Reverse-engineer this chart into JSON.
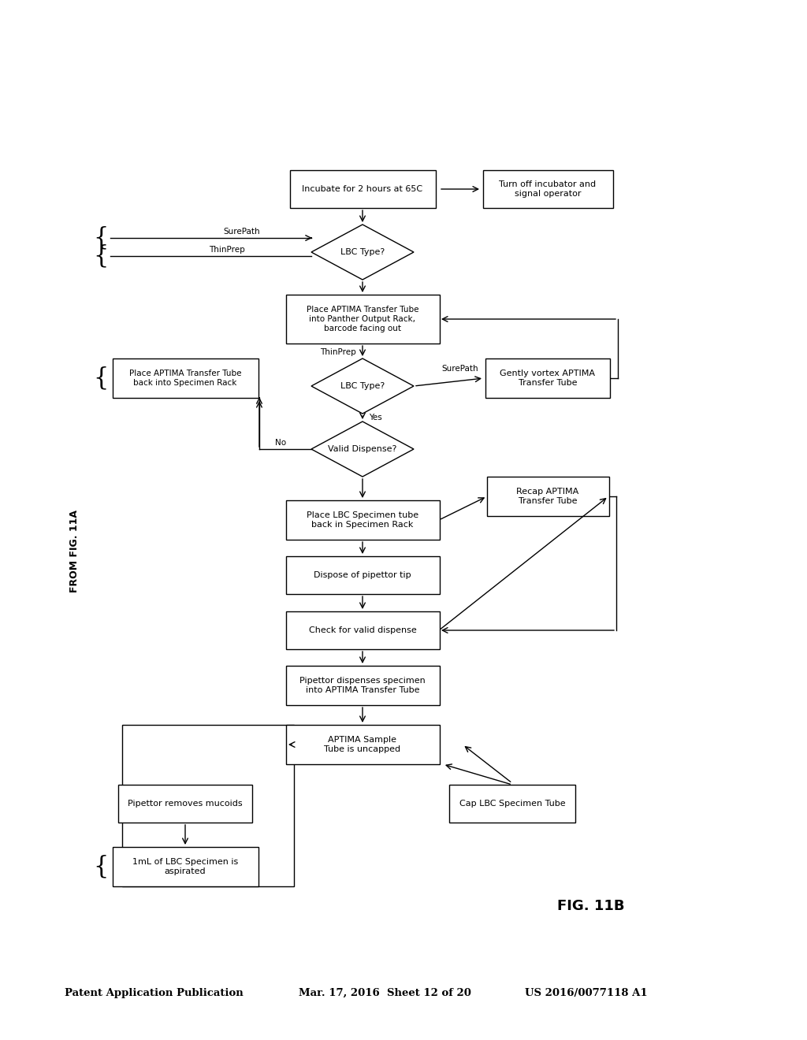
{
  "title_left": "Patent Application Publication",
  "title_mid": "Mar. 17, 2016  Sheet 12 of 20",
  "title_right": "US 2016/0077118 A1",
  "fig_label": "FIG. 11B",
  "from_label": "FROM FIG. 11A",
  "background": "#ffffff"
}
